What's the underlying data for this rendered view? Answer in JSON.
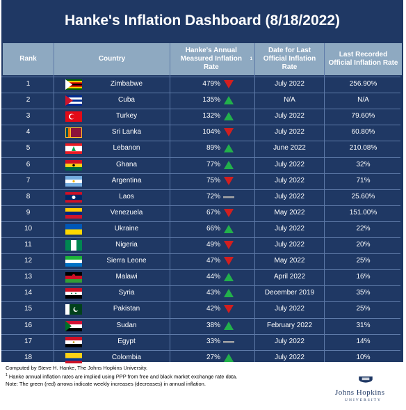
{
  "chart_data": {
    "type": "table",
    "title": "Hanke's Inflation Dashboard (8/18/2022)",
    "columns": [
      "Rank",
      "Country",
      "Hanke's Annual Measured Inflation Rate",
      "Date for Last Official Inflation Rate",
      "Last Recorded Official Inflation Rate"
    ],
    "header_superscript": "1",
    "rows": [
      {
        "rank": "1",
        "country": "Zimbabwe",
        "rate": "479%",
        "trend": "down",
        "date": "July 2022",
        "official": "256.90%"
      },
      {
        "rank": "2",
        "country": "Cuba",
        "rate": "135%",
        "trend": "up",
        "date": "N/A",
        "official": "N/A"
      },
      {
        "rank": "3",
        "country": "Turkey",
        "rate": "132%",
        "trend": "up",
        "date": "July 2022",
        "official": "79.60%"
      },
      {
        "rank": "4",
        "country": "Sri Lanka",
        "rate": "104%",
        "trend": "down",
        "date": "July 2022",
        "official": "60.80%"
      },
      {
        "rank": "5",
        "country": "Lebanon",
        "rate": "89%",
        "trend": "up",
        "date": "June 2022",
        "official": "210.08%"
      },
      {
        "rank": "6",
        "country": "Ghana",
        "rate": "77%",
        "trend": "up",
        "date": "July 2022",
        "official": "32%"
      },
      {
        "rank": "7",
        "country": "Argentina",
        "rate": "75%",
        "trend": "down",
        "date": "July 2022",
        "official": "71%"
      },
      {
        "rank": "8",
        "country": "Laos",
        "rate": "72%",
        "trend": "flat",
        "date": "July 2022",
        "official": "25.60%"
      },
      {
        "rank": "9",
        "country": "Venezuela",
        "rate": "67%",
        "trend": "down",
        "date": "May 2022",
        "official": "151.00%"
      },
      {
        "rank": "10",
        "country": "Ukraine",
        "rate": "66%",
        "trend": "up",
        "date": "July 2022",
        "official": "22%"
      },
      {
        "rank": "11",
        "country": "Nigeria",
        "rate": "49%",
        "trend": "down",
        "date": "July 2022",
        "official": "20%"
      },
      {
        "rank": "12",
        "country": "Sierra Leone",
        "rate": "47%",
        "trend": "down",
        "date": "May 2022",
        "official": "25%"
      },
      {
        "rank": "13",
        "country": "Malawi",
        "rate": "44%",
        "trend": "up",
        "date": "April 2022",
        "official": "16%"
      },
      {
        "rank": "14",
        "country": "Syria",
        "rate": "43%",
        "trend": "up",
        "date": "December 2019",
        "official": "35%"
      },
      {
        "rank": "15",
        "country": "Pakistan",
        "rate": "42%",
        "trend": "down",
        "date": "July 2022",
        "official": "25%"
      },
      {
        "rank": "16",
        "country": "Sudan",
        "rate": "38%",
        "trend": "up",
        "date": "February 2022",
        "official": "31%"
      },
      {
        "rank": "17",
        "country": "Egypt",
        "rate": "33%",
        "trend": "flat",
        "date": "July 2022",
        "official": "14%"
      },
      {
        "rank": "18",
        "country": "Colombia",
        "rate": "27%",
        "trend": "up",
        "date": "July 2022",
        "official": "10%"
      }
    ]
  },
  "footnotes": {
    "line1": "Computed by Steve H. Hanke, The Johns Hopkins University.",
    "line2_sup": "1",
    "line2": " Hanke annual inflation rates are implied using PPP from free and black market exchange rate data.",
    "line3": "Note: The green (red) arrows indicate weekly increases (decreases) in annual inflation."
  },
  "logo": {
    "text": "Johns Hopkins",
    "sub": "UNIVERSITY"
  },
  "colors": {
    "background": "#1f3864",
    "header": "#8ea9c1",
    "up": "#22b04b",
    "down": "#d21f1f",
    "flat": "#a6a6a6"
  },
  "flags": {
    "Zimbabwe": "zimbabwe-flag-icon",
    "Cuba": "cuba-flag-icon",
    "Turkey": "turkey-flag-icon",
    "Sri Lanka": "sri-lanka-flag-icon",
    "Lebanon": "lebanon-flag-icon",
    "Ghana": "ghana-flag-icon",
    "Argentina": "argentina-flag-icon",
    "Laos": "laos-flag-icon",
    "Venezuela": "venezuela-flag-icon",
    "Ukraine": "ukraine-flag-icon",
    "Nigeria": "nigeria-flag-icon",
    "Sierra Leone": "sierra-leone-flag-icon",
    "Malawi": "malawi-flag-icon",
    "Syria": "syria-flag-icon",
    "Pakistan": "pakistan-flag-icon",
    "Sudan": "sudan-flag-icon",
    "Egypt": "egypt-flag-icon",
    "Colombia": "colombia-flag-icon"
  }
}
